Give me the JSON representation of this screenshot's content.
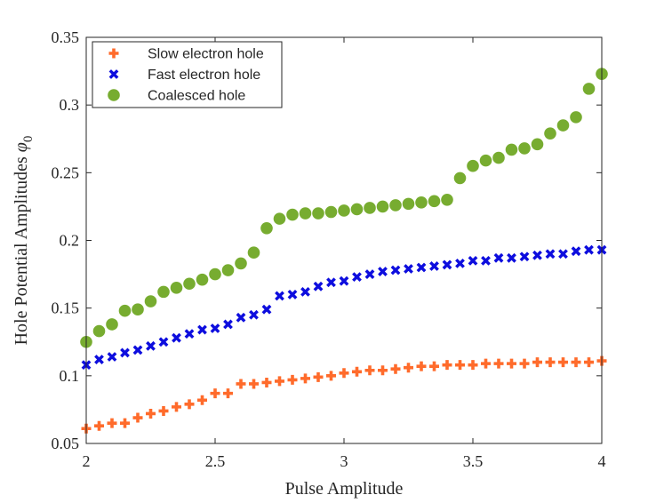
{
  "chart_data": {
    "type": "scatter",
    "title": "",
    "xlabel": "Pulse Amplitude",
    "ylabel": "Hole Potential Amplitudes",
    "ylabel_symbol": "φ",
    "ylabel_subscript": "0",
    "xlim": [
      2,
      4
    ],
    "ylim": [
      0.05,
      0.35
    ],
    "x_ticks": [
      2,
      2.5,
      3,
      3.5,
      4
    ],
    "x_tick_labels": [
      "2",
      "2.5",
      "3",
      "3.5",
      "4"
    ],
    "y_ticks": [
      0.05,
      0.1,
      0.15,
      0.2,
      0.25,
      0.3,
      0.35
    ],
    "y_tick_labels": [
      "0.05",
      "0.1",
      "0.15",
      "0.2",
      "0.25",
      "0.3",
      "0.35"
    ],
    "grid": false,
    "legend_position": "top-left",
    "x": [
      2.0,
      2.05,
      2.1,
      2.15,
      2.2,
      2.25,
      2.3,
      2.35,
      2.4,
      2.45,
      2.5,
      2.55,
      2.6,
      2.65,
      2.7,
      2.75,
      2.8,
      2.85,
      2.9,
      2.95,
      3.0,
      3.05,
      3.1,
      3.15,
      3.2,
      3.25,
      3.3,
      3.35,
      3.4,
      3.45,
      3.5,
      3.55,
      3.6,
      3.65,
      3.7,
      3.75,
      3.8,
      3.85,
      3.9,
      3.95,
      4.0
    ],
    "series": [
      {
        "name": "Slow electron hole",
        "marker": "plus",
        "color": "#ff6b2b",
        "values": [
          0.061,
          0.063,
          0.065,
          0.065,
          0.069,
          0.072,
          0.074,
          0.077,
          0.079,
          0.082,
          0.087,
          0.087,
          0.094,
          0.094,
          0.095,
          0.096,
          0.097,
          0.098,
          0.099,
          0.1,
          0.102,
          0.103,
          0.104,
          0.104,
          0.105,
          0.106,
          0.107,
          0.107,
          0.108,
          0.108,
          0.108,
          0.109,
          0.109,
          0.109,
          0.109,
          0.11,
          0.11,
          0.11,
          0.11,
          0.11,
          0.111
        ]
      },
      {
        "name": "Fast electron hole",
        "marker": "cross",
        "color": "#0d0dde",
        "values": [
          0.108,
          0.112,
          0.114,
          0.117,
          0.119,
          0.122,
          0.125,
          0.128,
          0.131,
          0.134,
          0.135,
          0.138,
          0.143,
          0.145,
          0.149,
          0.159,
          0.16,
          0.162,
          0.166,
          0.169,
          0.17,
          0.173,
          0.175,
          0.177,
          0.178,
          0.179,
          0.18,
          0.181,
          0.182,
          0.183,
          0.185,
          0.185,
          0.187,
          0.187,
          0.188,
          0.189,
          0.19,
          0.19,
          0.192,
          0.193,
          0.193
        ]
      },
      {
        "name": "Coalesced hole",
        "marker": "circle",
        "color": "#77ac30",
        "values": [
          0.125,
          0.133,
          0.138,
          0.148,
          0.149,
          0.155,
          0.162,
          0.165,
          0.168,
          0.171,
          0.175,
          0.178,
          0.183,
          0.191,
          0.209,
          0.216,
          0.219,
          0.22,
          0.22,
          0.221,
          0.222,
          0.223,
          0.224,
          0.225,
          0.226,
          0.227,
          0.228,
          0.229,
          0.23,
          0.246,
          0.255,
          0.259,
          0.261,
          0.267,
          0.268,
          0.271,
          0.279,
          0.285,
          0.291,
          0.312,
          0.323
        ]
      }
    ]
  }
}
